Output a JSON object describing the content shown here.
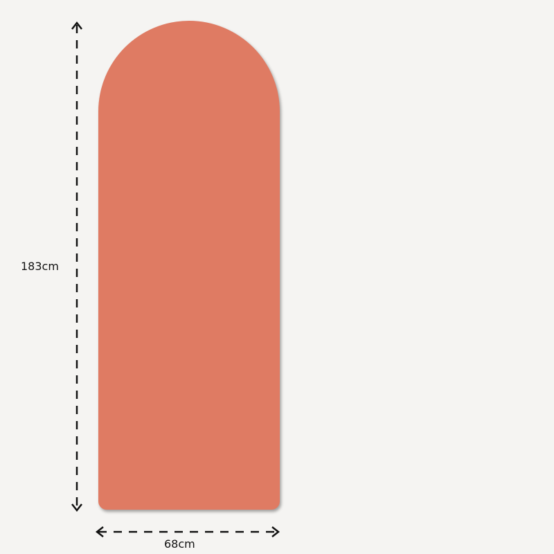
{
  "product": {
    "color": "#df7b63",
    "shape": "arch"
  },
  "dimensions": {
    "height_label": "183cm",
    "width_label": "68cm"
  }
}
